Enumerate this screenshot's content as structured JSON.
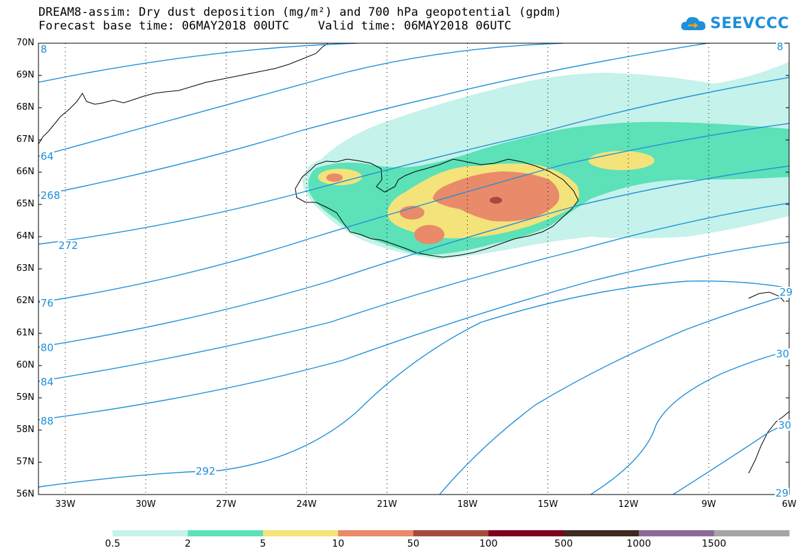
{
  "title": {
    "line1": "DREAM8-assim: Dry dust deposition (mg/m²) and 700 hPa geopotential (gpdm)",
    "line2": "Forecast base time: 06MAY2018 00UTC    Valid time: 06MAY2018 06UTC"
  },
  "logo": {
    "text": "SEEVCCC",
    "icon": "cloud-icon"
  },
  "colors": {
    "contour": "#1e90d8",
    "bins": [
      "#c5f2ea",
      "#5ce1b8",
      "#f4e37a",
      "#e98a6a",
      "#a64a3e",
      "#800020",
      "#3a2a20",
      "#8c6a96",
      "#a5a5a5"
    ]
  },
  "axes": {
    "lat_labels": [
      "70N",
      "69N",
      "68N",
      "67N",
      "66N",
      "65N",
      "64N",
      "63N",
      "62N",
      "61N",
      "60N",
      "59N",
      "58N",
      "57N",
      "56N"
    ],
    "lon_labels": [
      "33W",
      "30W",
      "27W",
      "24W",
      "21W",
      "18W",
      "15W",
      "12W",
      "9W",
      "6W"
    ]
  },
  "legend": {
    "labels": [
      "0.5",
      "2",
      "5",
      "10",
      "50",
      "100",
      "500",
      "1000",
      "1500"
    ]
  },
  "contours": {
    "labels": [
      "64",
      "268",
      "272",
      "76",
      "80",
      "84",
      "88",
      "292",
      "29",
      "30",
      "8",
      "30",
      "8",
      "29"
    ]
  }
}
